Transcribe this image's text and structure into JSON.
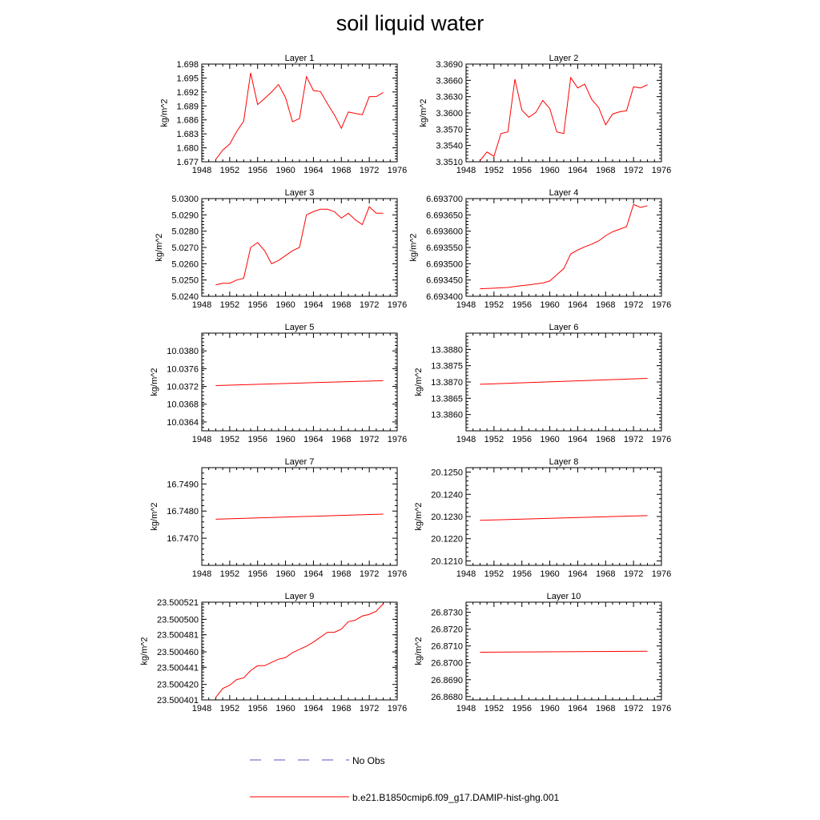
{
  "page_title": "soil liquid water",
  "colors": {
    "model_line": "#ff0000",
    "obs_line": "#5555cc",
    "axis": "#000000"
  },
  "legend": [
    {
      "label": "No Obs",
      "style": "dashed",
      "color": "#5555cc"
    },
    {
      "label": "b.e21.B1850cmip6.f09_g17.DAMIP-hist-ghg.001",
      "style": "solid",
      "color": "#ff0000"
    }
  ],
  "chart_data": [
    {
      "type": "line",
      "title": "Layer 1",
      "ylabel": "kg/m^2",
      "xlim": [
        1948,
        1976
      ],
      "ylim": [
        1.677,
        1.698
      ],
      "xticks": [
        "1948",
        "1952",
        "1956",
        "1960",
        "1964",
        "1968",
        "1972",
        "1976"
      ],
      "yticks": [
        "1.677",
        "1.680",
        "1.683",
        "1.686",
        "1.689",
        "1.692",
        "1.695",
        "1.698"
      ],
      "x": [
        1950,
        1951,
        1952,
        1953,
        1954,
        1955,
        1956,
        1957,
        1958,
        1959,
        1960,
        1961,
        1962,
        1963,
        1964,
        1965,
        1966,
        1967,
        1968,
        1969,
        1970,
        1971,
        1972,
        1973,
        1974
      ],
      "series": [
        {
          "values": [
            1.6775,
            1.6795,
            1.6808,
            1.6835,
            1.6857,
            1.6961,
            1.6893,
            1.6906,
            1.692,
            1.6936,
            1.6908,
            1.6856,
            1.6863,
            1.6953,
            1.6923,
            1.6921,
            1.6895,
            1.6871,
            1.6842,
            1.6877,
            1.6874,
            1.6871,
            1.691,
            1.691,
            1.6919
          ]
        }
      ]
    },
    {
      "type": "line",
      "title": "Layer 2",
      "ylabel": "kg/m^2",
      "xlim": [
        1948,
        1976
      ],
      "ylim": [
        3.351,
        3.369
      ],
      "xticks": [
        "1948",
        "1952",
        "1956",
        "1960",
        "1964",
        "1968",
        "1972",
        "1976"
      ],
      "yticks": [
        "3.3510",
        "3.3540",
        "3.3570",
        "3.3600",
        "3.3630",
        "3.3660",
        "3.3690"
      ],
      "x": [
        1950,
        1951,
        1952,
        1953,
        1954,
        1955,
        1956,
        1957,
        1958,
        1959,
        1960,
        1961,
        1962,
        1963,
        1964,
        1965,
        1966,
        1967,
        1968,
        1969,
        1970,
        1971,
        1972,
        1973,
        1974
      ],
      "series": [
        {
          "values": [
            3.3512,
            3.3528,
            3.352,
            3.3562,
            3.3565,
            3.3662,
            3.3605,
            3.3592,
            3.3601,
            3.3623,
            3.3608,
            3.3565,
            3.3562,
            3.3665,
            3.3646,
            3.3653,
            3.3625,
            3.361,
            3.3578,
            3.3598,
            3.3602,
            3.3604,
            3.3648,
            3.3646,
            3.3652
          ]
        }
      ]
    },
    {
      "type": "line",
      "title": "Layer 3",
      "ylabel": "kg/m^2",
      "xlim": [
        1948,
        1976
      ],
      "ylim": [
        5.024,
        5.03
      ],
      "xticks": [
        "1948",
        "1952",
        "1956",
        "1960",
        "1964",
        "1968",
        "1972",
        "1976"
      ],
      "yticks": [
        "5.0240",
        "5.0250",
        "5.0260",
        "5.0270",
        "5.0280",
        "5.0290",
        "5.0300"
      ],
      "x": [
        1950,
        1951,
        1952,
        1953,
        1954,
        1955,
        1956,
        1957,
        1958,
        1959,
        1960,
        1961,
        1962,
        1963,
        1964,
        1965,
        1966,
        1967,
        1968,
        1969,
        1970,
        1971,
        1972,
        1973,
        1974
      ],
      "series": [
        {
          "values": [
            5.0247,
            5.0248,
            5.0248,
            5.025,
            5.0251,
            5.027,
            5.0273,
            5.0268,
            5.026,
            5.0262,
            5.0265,
            5.0268,
            5.027,
            5.029,
            5.0292,
            5.02935,
            5.02935,
            5.0292,
            5.0288,
            5.0291,
            5.0287,
            5.0284,
            5.0295,
            5.0291,
            5.0291
          ]
        }
      ]
    },
    {
      "type": "line",
      "title": "Layer 4",
      "ylabel": "kg/m^2",
      "xlim": [
        1948,
        1976
      ],
      "ylim": [
        6.6934,
        6.6937
      ],
      "xticks": [
        "1948",
        "1952",
        "1956",
        "1960",
        "1964",
        "1968",
        "1972",
        "1976"
      ],
      "yticks": [
        "6.693400",
        "6.693450",
        "6.693500",
        "6.693550",
        "6.693600",
        "6.693650",
        "6.693700"
      ],
      "x": [
        1950,
        1951,
        1952,
        1953,
        1954,
        1955,
        1956,
        1957,
        1958,
        1959,
        1960,
        1961,
        1962,
        1963,
        1964,
        1965,
        1966,
        1967,
        1968,
        1969,
        1970,
        1971,
        1972,
        1973,
        1974
      ],
      "series": [
        {
          "values": [
            6.693423,
            6.693424,
            6.693425,
            6.693426,
            6.693427,
            6.69343,
            6.693433,
            6.693435,
            6.693438,
            6.693441,
            6.693447,
            6.693466,
            6.693485,
            6.69353,
            6.693542,
            6.693552,
            6.69356,
            6.69357,
            6.693586,
            6.693598,
            6.693606,
            6.693614,
            6.693682,
            6.693673,
            6.693678
          ]
        }
      ]
    },
    {
      "type": "line",
      "title": "Layer 5",
      "ylabel": "kg/m^2",
      "xlim": [
        1948,
        1976
      ],
      "ylim": [
        10.0362,
        10.0384
      ],
      "xticks": [
        "1948",
        "1952",
        "1956",
        "1960",
        "1964",
        "1968",
        "1972",
        "1976"
      ],
      "yticks": [
        "10.0364",
        "10.0368",
        "10.0372",
        "10.0376",
        "10.0380"
      ],
      "x": [
        1950,
        1974
      ],
      "series": [
        {
          "values": [
            10.03722,
            10.03733
          ]
        }
      ]
    },
    {
      "type": "line",
      "title": "Layer 6",
      "ylabel": "kg/m^2",
      "xlim": [
        1948,
        1976
      ],
      "ylim": [
        13.3855,
        13.3885
      ],
      "xticks": [
        "1948",
        "1952",
        "1956",
        "1960",
        "1964",
        "1968",
        "1972",
        "1976"
      ],
      "yticks": [
        "13.3860",
        "13.3865",
        "13.3870",
        "13.3875",
        "13.3880"
      ],
      "x": [
        1950,
        1974
      ],
      "series": [
        {
          "values": [
            13.38693,
            13.38711
          ]
        }
      ]
    },
    {
      "type": "line",
      "title": "Layer 7",
      "ylabel": "kg/m^2",
      "xlim": [
        1948,
        1976
      ],
      "ylim": [
        16.746,
        16.7496
      ],
      "xticks": [
        "1948",
        "1952",
        "1956",
        "1960",
        "1964",
        "1968",
        "1972",
        "1976"
      ],
      "yticks": [
        "16.7470",
        "16.7480",
        "16.7490"
      ],
      "x": [
        1950,
        1974
      ],
      "series": [
        {
          "values": [
            16.7477,
            16.74789
          ]
        }
      ]
    },
    {
      "type": "line",
      "title": "Layer 8",
      "ylabel": "kg/m^2",
      "xlim": [
        1948,
        1976
      ],
      "ylim": [
        20.1208,
        20.1252
      ],
      "xticks": [
        "1948",
        "1952",
        "1956",
        "1960",
        "1964",
        "1968",
        "1972",
        "1976"
      ],
      "yticks": [
        "20.1210",
        "20.1220",
        "20.1230",
        "20.1240",
        "20.1250"
      ],
      "x": [
        1950,
        1974
      ],
      "series": [
        {
          "values": [
            20.12283,
            20.12304
          ]
        }
      ]
    },
    {
      "type": "line",
      "title": "Layer 9",
      "ylabel": "kg/m^2",
      "xlim": [
        1948,
        1976
      ],
      "ylim": [
        23.500401,
        23.500521
      ],
      "xticks": [
        "1948",
        "1952",
        "1956",
        "1960",
        "1964",
        "1968",
        "1972",
        "1976"
      ],
      "yticks": [
        "23.500401",
        "23.500420",
        "23.500441",
        "23.500460",
        "23.500481",
        "23.500500",
        "23.500521"
      ],
      "x": [
        1950,
        1951,
        1952,
        1953,
        1954,
        1955,
        1956,
        1957,
        1958,
        1959,
        1960,
        1961,
        1962,
        1963,
        1964,
        1965,
        1966,
        1967,
        1968,
        1969,
        1970,
        1971,
        1972,
        1973,
        1974
      ],
      "series": [
        {
          "values": [
            23.500404,
            23.500415,
            23.500419,
            23.500426,
            23.500428,
            23.500437,
            23.500443,
            23.500443,
            23.500447,
            23.500451,
            23.500453,
            23.500459,
            23.500463,
            23.500467,
            23.500472,
            23.500478,
            23.500484,
            23.500484,
            23.500488,
            23.500497,
            23.500499,
            23.500504,
            23.500506,
            23.50051,
            23.500519
          ]
        }
      ]
    },
    {
      "type": "line",
      "title": "Layer 10",
      "ylabel": "kg/m^2",
      "xlim": [
        1948,
        1976
      ],
      "ylim": [
        26.8678,
        26.8736
      ],
      "xticks": [
        "1948",
        "1952",
        "1956",
        "1960",
        "1964",
        "1968",
        "1972",
        "1976"
      ],
      "yticks": [
        "26.8680",
        "26.8690",
        "26.8700",
        "26.8710",
        "26.8720",
        "26.8730"
      ],
      "x": [
        1950,
        1974
      ],
      "series": [
        {
          "values": [
            26.87063,
            26.87069
          ]
        }
      ]
    }
  ]
}
